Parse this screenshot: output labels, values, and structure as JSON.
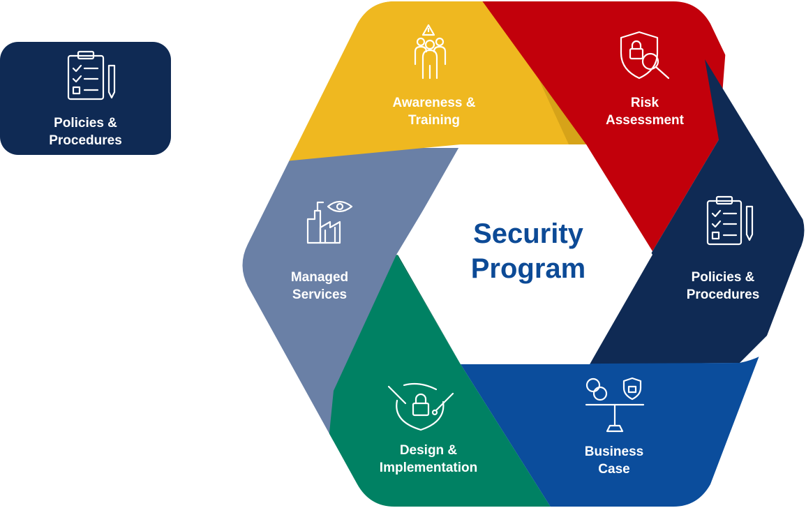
{
  "sidebar_card": {
    "line1": "Policies &",
    "line2": "Procedures",
    "icon": "clipboard-checklist-icon",
    "color": "#0f2a54"
  },
  "center": {
    "line1": "Security",
    "line2": "Program",
    "color": "#0c4a96"
  },
  "segments": [
    {
      "key": "awareness",
      "line1": "Awareness &",
      "line2": "Training",
      "color": "#efb820",
      "icon": "people-warning-icon"
    },
    {
      "key": "risk",
      "line1": "Risk",
      "line2": "Assessment",
      "color": "#c2000b",
      "icon": "shield-magnifier-icon"
    },
    {
      "key": "policies",
      "line1": "Policies &",
      "line2": "Procedures",
      "color": "#0f2a54",
      "icon": "clipboard-checklist-icon"
    },
    {
      "key": "business",
      "line1": "Business",
      "line2": "Case",
      "color": "#0b4d9c",
      "icon": "balance-scale-icon"
    },
    {
      "key": "design",
      "line1": "Design &",
      "line2": "Implementation",
      "color": "#008163",
      "icon": "shield-tools-icon"
    },
    {
      "key": "managed",
      "line1": "Managed",
      "line2": "Services",
      "color": "#6a80a6",
      "icon": "factory-eye-icon"
    }
  ]
}
